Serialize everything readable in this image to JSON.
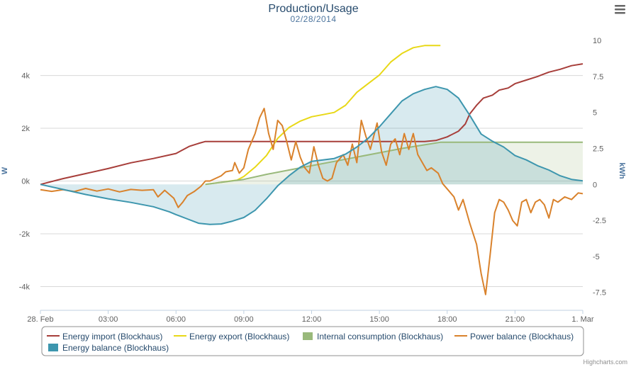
{
  "header": {
    "title": "Production/Usage",
    "subtitle": "02/28/2014",
    "menu_icon": "hamburger-menu-icon"
  },
  "credits": "Highcharts.com",
  "chart_data": {
    "type": "line",
    "title": "Production/Usage",
    "subtitle": "02/28/2014",
    "xlabel": "",
    "x_ticks": [
      "28. Feb",
      "03:00",
      "06:00",
      "09:00",
      "12:00",
      "15:00",
      "18:00",
      "21:00",
      "1. Mar"
    ],
    "xlim_hours": [
      0,
      24
    ],
    "y_left": {
      "label": "W",
      "ylim": [
        -4900,
        5600
      ],
      "ticks": [
        -4000,
        -2000,
        0,
        2000,
        4000
      ],
      "tick_labels": [
        "-4k",
        "-2k",
        "0k",
        "2k",
        "4k"
      ]
    },
    "y_right": {
      "label": "kWh",
      "ylim": [
        -8.75,
        10.5
      ],
      "ticks": [
        -7.5,
        -5,
        -2.5,
        0,
        2.5,
        5,
        7.5,
        10
      ],
      "tick_labels": [
        "-7.5",
        "-5",
        "-2.5",
        "0",
        "2.5",
        "5",
        "7.5",
        "10"
      ]
    },
    "grid": true,
    "legend_position": "bottom",
    "series": [
      {
        "name": "Energy import (Blockhaus)",
        "kind": "line",
        "axis": "right",
        "color": "#a73e3a",
        "points": [
          [
            0,
            0
          ],
          [
            1,
            0.4
          ],
          [
            2,
            0.75
          ],
          [
            3,
            1.1
          ],
          [
            4,
            1.5
          ],
          [
            5,
            1.8
          ],
          [
            6,
            2.15
          ],
          [
            6.3,
            2.4
          ],
          [
            6.6,
            2.65
          ],
          [
            7,
            2.85
          ],
          [
            7.3,
            2.98
          ],
          [
            8,
            2.98
          ],
          [
            10,
            2.98
          ],
          [
            12,
            2.98
          ],
          [
            14,
            2.98
          ],
          [
            16,
            2.98
          ],
          [
            17,
            2.98
          ],
          [
            17.5,
            3.05
          ],
          [
            18,
            3.3
          ],
          [
            18.5,
            3.7
          ],
          [
            18.8,
            4.2
          ],
          [
            19,
            4.9
          ],
          [
            19.3,
            5.5
          ],
          [
            19.6,
            6.0
          ],
          [
            20,
            6.2
          ],
          [
            20.3,
            6.55
          ],
          [
            20.7,
            6.7
          ],
          [
            21,
            7.0
          ],
          [
            21.5,
            7.25
          ],
          [
            22,
            7.5
          ],
          [
            22.5,
            7.8
          ],
          [
            23,
            8.0
          ],
          [
            23.5,
            8.25
          ],
          [
            24,
            8.38
          ]
        ]
      },
      {
        "name": "Energy export (Blockhaus)",
        "kind": "line",
        "axis": "right",
        "color": "#e8d817",
        "points": [
          [
            7.3,
            0
          ],
          [
            8,
            0.15
          ],
          [
            8.7,
            0.3
          ],
          [
            9,
            0.55
          ],
          [
            9.5,
            1.2
          ],
          [
            10,
            2.0
          ],
          [
            10.5,
            3.2
          ],
          [
            11,
            3.95
          ],
          [
            11.5,
            4.4
          ],
          [
            12,
            4.7
          ],
          [
            12.5,
            4.85
          ],
          [
            13,
            5.0
          ],
          [
            13.5,
            5.5
          ],
          [
            14,
            6.4
          ],
          [
            14.5,
            7.0
          ],
          [
            15,
            7.6
          ],
          [
            15.5,
            8.5
          ],
          [
            16,
            9.1
          ],
          [
            16.5,
            9.5
          ],
          [
            17,
            9.65
          ],
          [
            17.7,
            9.65
          ]
        ]
      },
      {
        "name": "Internal consumption (Blockhaus)",
        "kind": "area",
        "axis": "right",
        "color": "#99b97b",
        "points": [
          [
            7.3,
            0
          ],
          [
            9,
            0.35
          ],
          [
            10,
            0.7
          ],
          [
            11,
            1.0
          ],
          [
            12,
            1.3
          ],
          [
            13,
            1.6
          ],
          [
            14,
            1.9
          ],
          [
            15,
            2.2
          ],
          [
            16,
            2.5
          ],
          [
            17,
            2.75
          ],
          [
            17.7,
            2.93
          ],
          [
            18,
            2.93
          ],
          [
            20,
            2.93
          ],
          [
            22,
            2.93
          ],
          [
            24,
            2.93
          ]
        ]
      },
      {
        "name": "Power balance (Blockhaus)",
        "kind": "line",
        "axis": "left",
        "color": "#d9822c",
        "points": [
          [
            0,
            -330
          ],
          [
            0.5,
            -390
          ],
          [
            1,
            -330
          ],
          [
            1.5,
            -400
          ],
          [
            2,
            -280
          ],
          [
            2.5,
            -380
          ],
          [
            3,
            -300
          ],
          [
            3.5,
            -410
          ],
          [
            4,
            -320
          ],
          [
            4.5,
            -350
          ],
          [
            5,
            -330
          ],
          [
            5.2,
            -600
          ],
          [
            5.5,
            -350
          ],
          [
            5.9,
            -650
          ],
          [
            6.1,
            -1000
          ],
          [
            6.3,
            -800
          ],
          [
            6.5,
            -550
          ],
          [
            6.8,
            -400
          ],
          [
            7.1,
            -200
          ],
          [
            7.3,
            0
          ],
          [
            7.5,
            0
          ],
          [
            8,
            200
          ],
          [
            8.2,
            350
          ],
          [
            8.5,
            400
          ],
          [
            8.6,
            700
          ],
          [
            8.8,
            300
          ],
          [
            9,
            500
          ],
          [
            9.2,
            1200
          ],
          [
            9.5,
            1800
          ],
          [
            9.7,
            2400
          ],
          [
            9.9,
            2750
          ],
          [
            10.1,
            1800
          ],
          [
            10.3,
            1200
          ],
          [
            10.5,
            2300
          ],
          [
            10.7,
            2100
          ],
          [
            10.9,
            1500
          ],
          [
            11.1,
            800
          ],
          [
            11.3,
            1500
          ],
          [
            11.5,
            900
          ],
          [
            11.7,
            500
          ],
          [
            11.9,
            300
          ],
          [
            12.1,
            1300
          ],
          [
            12.3,
            600
          ],
          [
            12.5,
            100
          ],
          [
            12.7,
            0
          ],
          [
            12.9,
            100
          ],
          [
            13.1,
            700
          ],
          [
            13.4,
            1000
          ],
          [
            13.6,
            600
          ],
          [
            13.8,
            1400
          ],
          [
            14.0,
            700
          ],
          [
            14.2,
            2300
          ],
          [
            14.4,
            1700
          ],
          [
            14.6,
            1200
          ],
          [
            14.9,
            2200
          ],
          [
            15.1,
            1100
          ],
          [
            15.3,
            600
          ],
          [
            15.5,
            1400
          ],
          [
            15.7,
            1600
          ],
          [
            15.9,
            1000
          ],
          [
            16.1,
            1800
          ],
          [
            16.3,
            1200
          ],
          [
            16.5,
            1800
          ],
          [
            16.7,
            1000
          ],
          [
            16.9,
            700
          ],
          [
            17.1,
            400
          ],
          [
            17.3,
            500
          ],
          [
            17.6,
            300
          ],
          [
            17.8,
            -100
          ],
          [
            18.0,
            -300
          ],
          [
            18.3,
            -600
          ],
          [
            18.5,
            -1100
          ],
          [
            18.7,
            -700
          ],
          [
            19.0,
            -1600
          ],
          [
            19.3,
            -2400
          ],
          [
            19.5,
            -3500
          ],
          [
            19.7,
            -4300
          ],
          [
            19.9,
            -2800
          ],
          [
            20.1,
            -1200
          ],
          [
            20.3,
            -700
          ],
          [
            20.5,
            -800
          ],
          [
            20.7,
            -1100
          ],
          [
            20.9,
            -1500
          ],
          [
            21.1,
            -1700
          ],
          [
            21.3,
            -800
          ],
          [
            21.5,
            -700
          ],
          [
            21.7,
            -1200
          ],
          [
            21.9,
            -800
          ],
          [
            22.1,
            -700
          ],
          [
            22.3,
            -900
          ],
          [
            22.5,
            -1400
          ],
          [
            22.7,
            -700
          ],
          [
            22.9,
            -800
          ],
          [
            23.2,
            -600
          ],
          [
            23.5,
            -700
          ],
          [
            23.8,
            -450
          ],
          [
            24,
            -480
          ]
        ]
      },
      {
        "name": "Energy balance (Blockhaus)",
        "kind": "area",
        "axis": "right",
        "color": "#3d96ae",
        "points": [
          [
            0,
            0
          ],
          [
            1,
            -0.35
          ],
          [
            2,
            -0.7
          ],
          [
            3,
            -1.0
          ],
          [
            4,
            -1.25
          ],
          [
            5,
            -1.55
          ],
          [
            5.7,
            -1.9
          ],
          [
            6,
            -2.1
          ],
          [
            6.5,
            -2.4
          ],
          [
            7,
            -2.7
          ],
          [
            7.5,
            -2.78
          ],
          [
            8,
            -2.75
          ],
          [
            8.5,
            -2.55
          ],
          [
            9,
            -2.3
          ],
          [
            9.5,
            -1.8
          ],
          [
            10,
            -1.0
          ],
          [
            10.5,
            -0.1
          ],
          [
            11,
            0.6
          ],
          [
            11.5,
            1.2
          ],
          [
            12,
            1.6
          ],
          [
            12.5,
            1.7
          ],
          [
            13,
            1.8
          ],
          [
            13.5,
            2.1
          ],
          [
            14,
            2.6
          ],
          [
            14.5,
            3.2
          ],
          [
            15,
            4.0
          ],
          [
            15.5,
            4.9
          ],
          [
            16,
            5.8
          ],
          [
            16.5,
            6.3
          ],
          [
            17,
            6.6
          ],
          [
            17.5,
            6.8
          ],
          [
            18,
            6.6
          ],
          [
            18.5,
            6.0
          ],
          [
            19,
            4.8
          ],
          [
            19.5,
            3.5
          ],
          [
            20,
            3.0
          ],
          [
            20.5,
            2.6
          ],
          [
            21,
            2.0
          ],
          [
            21.5,
            1.7
          ],
          [
            22,
            1.3
          ],
          [
            22.5,
            1.0
          ],
          [
            23,
            0.6
          ],
          [
            23.5,
            0.35
          ],
          [
            24,
            0.25
          ]
        ]
      }
    ]
  }
}
